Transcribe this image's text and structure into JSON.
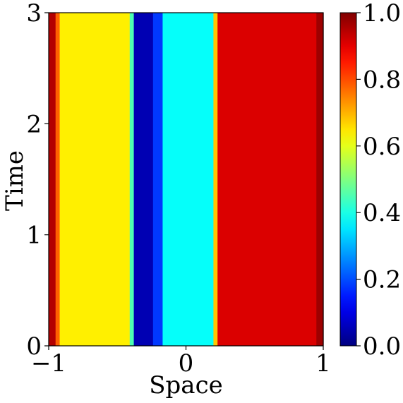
{
  "chart_data": {
    "type": "heatmap",
    "xlabel": "Space",
    "ylabel": "Time",
    "xlim": [
      -1,
      1
    ],
    "ylim": [
      0,
      3
    ],
    "x_ticks": [
      {
        "value": -1,
        "label": "−1"
      },
      {
        "value": 0,
        "label": "0"
      },
      {
        "value": 1,
        "label": "1"
      }
    ],
    "y_ticks": [
      {
        "value": 0,
        "label": "0"
      },
      {
        "value": 1,
        "label": "1"
      },
      {
        "value": 2,
        "label": "2"
      },
      {
        "value": 3,
        "label": "3"
      }
    ],
    "colorbar": {
      "colormap": "jet",
      "range": [
        0.0,
        1.0
      ],
      "ticks": [
        {
          "value": 0.0,
          "label": "0.0"
        },
        {
          "value": 0.2,
          "label": "0.2"
        },
        {
          "value": 0.4,
          "label": "0.4"
        },
        {
          "value": 0.6,
          "label": "0.6"
        },
        {
          "value": 0.8,
          "label": "0.8"
        },
        {
          "value": 1.0,
          "label": "1.0"
        }
      ]
    },
    "regions": [
      {
        "x_start": -1.0,
        "x_end": -0.95,
        "value": 0.95
      },
      {
        "x_start": -0.95,
        "x_end": -0.92,
        "value": 0.78
      },
      {
        "x_start": -0.92,
        "x_end": -0.41,
        "value": 0.64
      },
      {
        "x_start": -0.41,
        "x_end": -0.38,
        "value": 0.45
      },
      {
        "x_start": -0.38,
        "x_end": -0.24,
        "value": 0.05
      },
      {
        "x_start": -0.24,
        "x_end": -0.17,
        "value": 0.18
      },
      {
        "x_start": -0.17,
        "x_end": 0.2,
        "value": 0.38
      },
      {
        "x_start": 0.2,
        "x_end": 0.23,
        "value": 0.68
      },
      {
        "x_start": 0.23,
        "x_end": 0.95,
        "value": 0.91
      },
      {
        "x_start": 0.95,
        "x_end": 1.0,
        "value": 0.97
      }
    ]
  }
}
